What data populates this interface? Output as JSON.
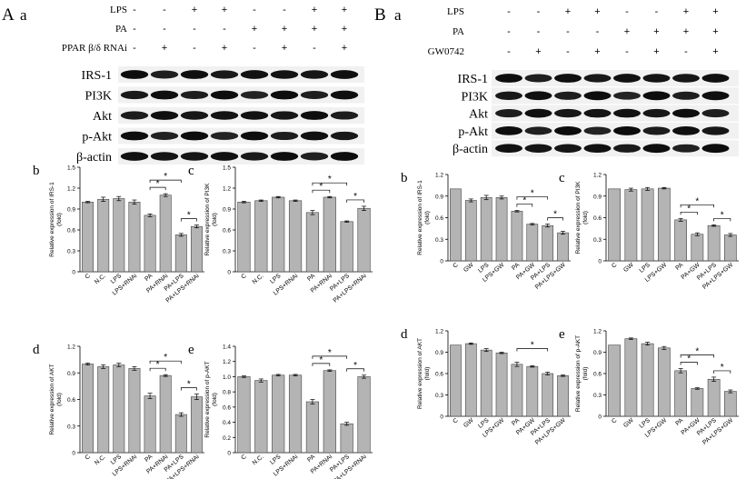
{
  "figure": {
    "panel_A": "A",
    "panel_B": "B",
    "sub_a": "a",
    "blot_A": {
      "rows": [
        {
          "label": "LPS",
          "signs": [
            "-",
            "-",
            "+",
            "+",
            "-",
            "-",
            "+",
            "+"
          ]
        },
        {
          "label": "PA",
          "signs": [
            "-",
            "-",
            "-",
            "-",
            "+",
            "+",
            "+",
            "+"
          ]
        },
        {
          "label": "PPAR β/δ RNAi",
          "signs": [
            "-",
            "+",
            "-",
            "+",
            "-",
            "+",
            "-",
            "+"
          ]
        }
      ],
      "bands": [
        "IRS-1",
        "PI3K",
        "Akt",
        "p-Akt",
        "β-actin"
      ]
    },
    "blot_B": {
      "rows": [
        {
          "label": "LPS",
          "signs": [
            "-",
            "-",
            "+",
            "+",
            "-",
            "-",
            "+",
            "+"
          ]
        },
        {
          "label": "PA",
          "signs": [
            "-",
            "-",
            "-",
            "-",
            "+",
            "+",
            "+",
            "+"
          ]
        },
        {
          "label": "GW0742",
          "signs": [
            "-",
            "+",
            "-",
            "+",
            "-",
            "+",
            "-",
            "+"
          ]
        }
      ],
      "bands": [
        "IRS-1",
        "PI3K",
        "Akt",
        "p-Akt",
        "β-actin"
      ]
    },
    "fold": "(fold)",
    "star": "*"
  },
  "chart_data": [
    {
      "id": "Ab",
      "letter": "b",
      "type": "bar",
      "ylabel": "Relative expression of IRS-1",
      "ylim": [
        0,
        1.5
      ],
      "yticks": [
        0,
        0.3,
        0.6,
        0.9,
        1.2,
        1.5
      ],
      "tick_labels": [
        "0",
        "0.3",
        "0.6",
        "0.9",
        "1.2",
        "1.5"
      ],
      "categories": [
        "C",
        "N.C.",
        "LPS",
        "LPS+RNAi",
        "PA",
        "PA+RNAi",
        "PA+LPS",
        "PA+LPS+RNAi"
      ],
      "values": [
        1.0,
        1.04,
        1.05,
        1.0,
        0.81,
        1.1,
        0.53,
        0.65
      ],
      "errors": [
        0.01,
        0.03,
        0.03,
        0.03,
        0.02,
        0.02,
        0.02,
        0.02
      ],
      "significance": [
        [
          4,
          5
        ],
        [
          4,
          6
        ],
        [
          6,
          7
        ]
      ]
    },
    {
      "id": "Ac",
      "letter": "c",
      "type": "bar",
      "ylabel": "Relative expression of PI3K",
      "ylim": [
        0,
        1.5
      ],
      "yticks": [
        0,
        0.3,
        0.6,
        0.9,
        1.2,
        1.5
      ],
      "tick_labels": [
        "0",
        "0.3",
        "0.6",
        "0.9",
        "1.2",
        "1.5"
      ],
      "categories": [
        "C",
        "N.C.",
        "LPS",
        "LPS+RNAi",
        "PA",
        "PA+RNAi",
        "PA+LPS",
        "PA+LPS+RNAi"
      ],
      "values": [
        1.0,
        1.02,
        1.07,
        1.02,
        0.85,
        1.07,
        0.72,
        0.91
      ],
      "errors": [
        0.01,
        0.01,
        0.01,
        0.01,
        0.03,
        0.01,
        0.01,
        0.03
      ],
      "significance": [
        [
          4,
          5
        ],
        [
          4,
          6
        ],
        [
          6,
          7
        ]
      ]
    },
    {
      "id": "Ad",
      "letter": "d",
      "type": "bar",
      "ylabel": "Relative expression of AKT",
      "ylim": [
        0,
        1.2
      ],
      "yticks": [
        0,
        0.3,
        0.6,
        0.9,
        1.2
      ],
      "tick_labels": [
        "0",
        "0.3",
        "0.6",
        "0.9",
        "1.2"
      ],
      "categories": [
        "C",
        "N.C.",
        "LPS",
        "LPS+RNAi",
        "PA",
        "PA+RNAi",
        "PA+LPS",
        "PA+LPS+RNAi"
      ],
      "values": [
        1.0,
        0.97,
        0.99,
        0.95,
        0.64,
        0.87,
        0.43,
        0.63
      ],
      "errors": [
        0.01,
        0.02,
        0.02,
        0.02,
        0.03,
        0.01,
        0.02,
        0.03
      ],
      "significance": [
        [
          4,
          5
        ],
        [
          4,
          6
        ],
        [
          6,
          7
        ]
      ]
    },
    {
      "id": "Ae",
      "letter": "e",
      "type": "bar",
      "ylabel": "Relative expression of p-AKT",
      "ylim": [
        0,
        1.4
      ],
      "yticks": [
        0,
        0.2,
        0.4,
        0.6,
        0.8,
        1.0,
        1.2,
        1.4
      ],
      "tick_labels": [
        "0",
        "0.2",
        "0.4",
        "0.6",
        "0.8",
        "1.0",
        "1.2",
        "1.4"
      ],
      "categories": [
        "C",
        "N.C.",
        "LPS",
        "LPS+RNAi",
        "PA",
        "PA+RNAi",
        "PA+LPS",
        "PA+LPS+RNAi"
      ],
      "values": [
        1.0,
        0.95,
        1.02,
        1.02,
        0.67,
        1.08,
        0.38,
        1.0
      ],
      "errors": [
        0.01,
        0.02,
        0.01,
        0.01,
        0.03,
        0.01,
        0.02,
        0.02
      ],
      "significance": [
        [
          4,
          5
        ],
        [
          4,
          6
        ],
        [
          6,
          7
        ]
      ]
    },
    {
      "id": "Bb",
      "letter": "b",
      "type": "bar",
      "ylabel": "Relative expression of IRS-1",
      "ylim": [
        0,
        1.2
      ],
      "yticks": [
        0,
        0.3,
        0.6,
        0.9,
        1.2
      ],
      "tick_labels": [
        "0",
        "0.3",
        "0.6",
        "0.9",
        "1.2"
      ],
      "categories": [
        "C",
        "GW",
        "LPS",
        "LPS+GW",
        "PA",
        "PA+GW",
        "PA+LPS",
        "PA+LPS+GW"
      ],
      "values": [
        1.0,
        0.84,
        0.88,
        0.88,
        0.69,
        0.51,
        0.49,
        0.39
      ],
      "errors": [
        0.0,
        0.02,
        0.03,
        0.02,
        0.01,
        0.01,
        0.02,
        0.02
      ],
      "significance": [
        [
          4,
          5
        ],
        [
          4,
          6
        ],
        [
          6,
          7
        ]
      ]
    },
    {
      "id": "Bc",
      "letter": "c",
      "type": "bar",
      "ylabel": "Relative expression of PI3K",
      "ylim": [
        0,
        1.2
      ],
      "yticks": [
        0,
        0.3,
        0.6,
        0.9,
        1.2
      ],
      "tick_labels": [
        "0",
        "0.3",
        "0.6",
        "0.9",
        "1.2"
      ],
      "categories": [
        "C",
        "GW",
        "LPS",
        "LPS+GW",
        "PA",
        "PA+GW",
        "PA+LPS",
        "PA+LPS+GW"
      ],
      "values": [
        1.0,
        0.99,
        1.0,
        1.01,
        0.57,
        0.37,
        0.49,
        0.36
      ],
      "errors": [
        0.0,
        0.02,
        0.02,
        0.01,
        0.02,
        0.02,
        0.01,
        0.02
      ],
      "significance": [
        [
          4,
          5
        ],
        [
          4,
          6
        ],
        [
          6,
          7
        ]
      ]
    },
    {
      "id": "Bd",
      "letter": "d",
      "type": "bar",
      "ylabel": "Relative expression of AKT",
      "ylim": [
        0,
        1.2
      ],
      "yticks": [
        0,
        0.3,
        0.6,
        0.9,
        1.2
      ],
      "tick_labels": [
        "0",
        "0.3",
        "0.6",
        "0.9",
        "1.2"
      ],
      "categories": [
        "C",
        "GW",
        "LPS",
        "LPS+GW",
        "PA",
        "PA+GW",
        "PA+LPS",
        "PA+LPS+GW"
      ],
      "values": [
        1.0,
        1.02,
        0.93,
        0.89,
        0.73,
        0.7,
        0.6,
        0.57
      ],
      "errors": [
        0.0,
        0.01,
        0.02,
        0.01,
        0.03,
        0.01,
        0.02,
        0.01
      ],
      "significance": [
        [
          4,
          6
        ]
      ]
    },
    {
      "id": "Be",
      "letter": "e",
      "type": "bar",
      "ylabel": "Relative expression of p-AKT",
      "ylim": [
        0,
        1.2
      ],
      "yticks": [
        0,
        0.3,
        0.6,
        0.9,
        1.2
      ],
      "tick_labels": [
        "0",
        "0.3",
        "0.6",
        "0.9",
        "1.2"
      ],
      "categories": [
        "C",
        "GW",
        "LPS",
        "LPS+GW",
        "PA",
        "PA+GW",
        "PA+LPS",
        "PA+LPS+GW"
      ],
      "values": [
        1.0,
        1.09,
        1.02,
        0.96,
        0.64,
        0.39,
        0.52,
        0.35
      ],
      "errors": [
        0.0,
        0.01,
        0.02,
        0.02,
        0.03,
        0.01,
        0.03,
        0.02
      ],
      "significance": [
        [
          4,
          5
        ],
        [
          4,
          6
        ],
        [
          6,
          7
        ]
      ]
    }
  ]
}
